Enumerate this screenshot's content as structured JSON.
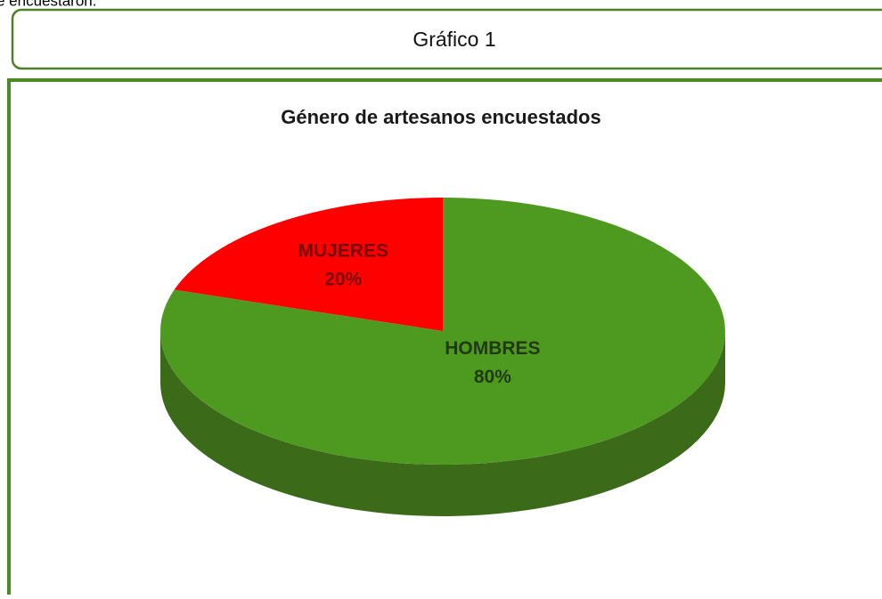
{
  "caption_top": "e encuestaron.",
  "figure_label": "Gráfico 1",
  "chart_data": {
    "type": "pie",
    "title": "Género de artesanos encuestados",
    "categories": [
      "MUJERES",
      "HOMBRES"
    ],
    "values": [
      20,
      80
    ],
    "value_labels": [
      "20%",
      "80%"
    ],
    "colors": [
      "#ff0000",
      "#4e9a21"
    ]
  }
}
